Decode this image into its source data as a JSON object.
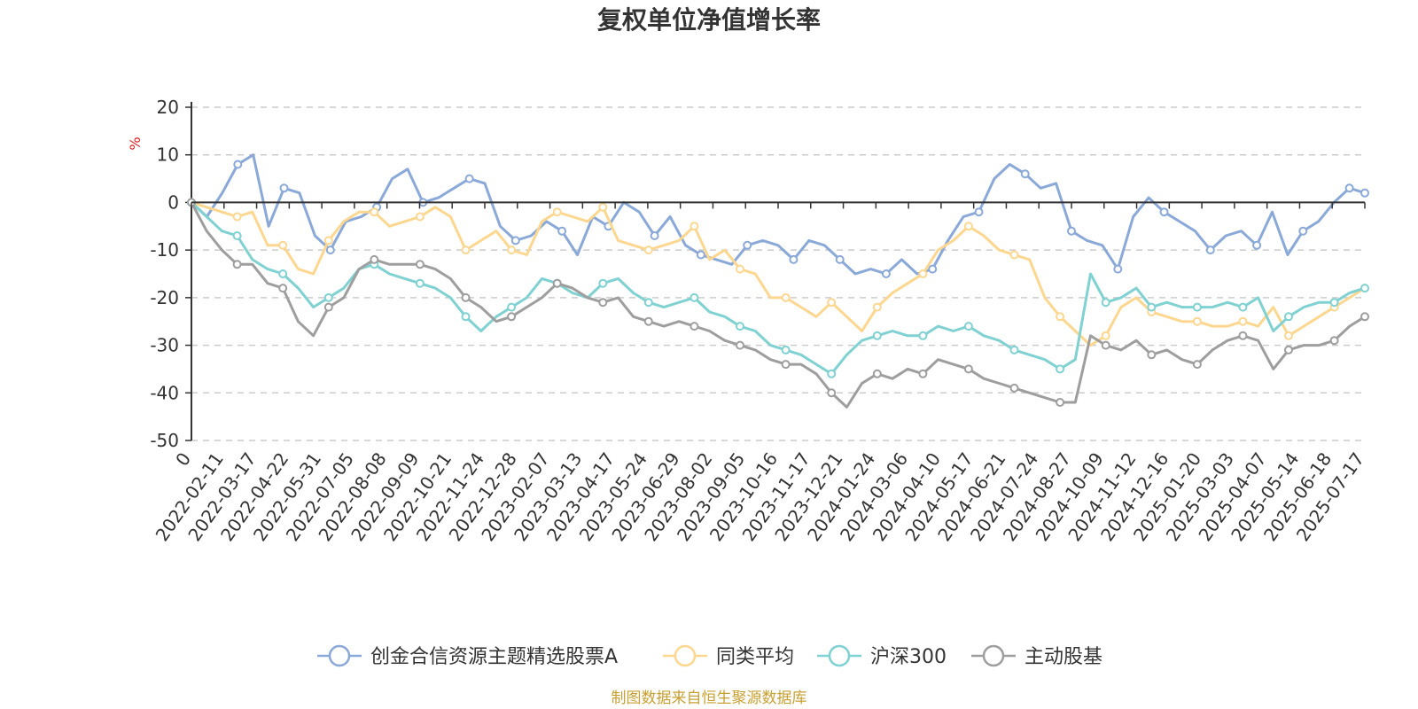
{
  "chart_data": {
    "type": "line",
    "title": "复权单位净值增长率",
    "ylabel": "%",
    "ylim": [
      -50,
      20
    ],
    "yticks": [
      20,
      10,
      0,
      -10,
      -20,
      -30,
      -40,
      -50
    ],
    "x_tick_labels": [
      "0",
      "2022-02-11",
      "2022-03-17",
      "2022-04-22",
      "2022-05-31",
      "2022-07-05",
      "2022-08-08",
      "2022-09-09",
      "2022-10-21",
      "2022-11-24",
      "2022-12-28",
      "2023-02-07",
      "2023-03-13",
      "2023-04-17",
      "2023-05-24",
      "2023-06-29",
      "2023-08-02",
      "2023-09-05",
      "2023-10-16",
      "2023-11-17",
      "2023-12-21",
      "2024-01-24",
      "2024-03-06",
      "2024-04-10",
      "2024-05-17",
      "2024-06-21",
      "2024-07-24",
      "2024-08-27",
      "2024-10-09",
      "2024-11-12",
      "2024-12-16",
      "2025-01-20",
      "2025-03-03",
      "2025-04-07",
      "2025-05-14",
      "2025-06-18",
      "2025-07-17"
    ],
    "grid": "horizontal-dashed",
    "legend_position": "bottom",
    "series": [
      {
        "name": "创金合信资源主题精选股票A",
        "color": "#8aa9d8",
        "values": [
          0,
          -3,
          2,
          8,
          10,
          -5,
          3,
          2,
          -7,
          -10,
          -4,
          -3,
          -1,
          5,
          7,
          0,
          1,
          3,
          5,
          4,
          -5,
          -8,
          -7,
          -4,
          -6,
          -11,
          -3,
          -5,
          0,
          -2,
          -7,
          -3,
          -9,
          -11,
          -12,
          -13,
          -9,
          -8,
          -9,
          -12,
          -8,
          -9,
          -12,
          -15,
          -14,
          -15,
          -12,
          -15,
          -14,
          -8,
          -3,
          -2,
          5,
          8,
          6,
          3,
          4,
          -6,
          -8,
          -9,
          -14,
          -3,
          1,
          -2,
          -4,
          -6,
          -10,
          -7,
          -6,
          -9,
          -2,
          -11,
          -6,
          -4,
          0,
          3,
          2
        ]
      },
      {
        "name": "同类平均",
        "color": "#fdd78f",
        "values": [
          0,
          -1,
          -2,
          -3,
          -2,
          -9,
          -9,
          -14,
          -15,
          -8,
          -4,
          -2,
          -2,
          -5,
          -4,
          -3,
          -1,
          -3,
          -10,
          -8,
          -6,
          -10,
          -11,
          -4,
          -2,
          -3,
          -4,
          -1,
          -8,
          -9,
          -10,
          -9,
          -8,
          -5,
          -12,
          -10,
          -14,
          -15,
          -20,
          -20,
          -22,
          -24,
          -21,
          -24,
          -27,
          -22,
          -19,
          -17,
          -15,
          -10,
          -8,
          -5,
          -7,
          -10,
          -11,
          -12,
          -20,
          -24,
          -27,
          -30,
          -28,
          -22,
          -20,
          -23,
          -24,
          -25,
          -25,
          -26,
          -26,
          -25,
          -26,
          -22,
          -28,
          -26,
          -24,
          -22,
          -20,
          -18
        ]
      },
      {
        "name": "沪深300",
        "color": "#7fd1d2",
        "values": [
          0,
          -3,
          -6,
          -7,
          -12,
          -14,
          -15,
          -18,
          -22,
          -20,
          -18,
          -14,
          -13,
          -15,
          -16,
          -17,
          -18,
          -20,
          -24,
          -27,
          -24,
          -22,
          -20,
          -16,
          -17,
          -19,
          -20,
          -17,
          -16,
          -19,
          -21,
          -22,
          -21,
          -20,
          -23,
          -24,
          -26,
          -27,
          -30,
          -31,
          -32,
          -34,
          -36,
          -32,
          -29,
          -28,
          -27,
          -28,
          -28,
          -26,
          -27,
          -26,
          -28,
          -29,
          -31,
          -32,
          -33,
          -35,
          -33,
          -15,
          -21,
          -20,
          -18,
          -22,
          -21,
          -22,
          -22,
          -22,
          -21,
          -22,
          -20,
          -27,
          -24,
          -22,
          -21,
          -21,
          -19,
          -18
        ]
      },
      {
        "name": "主动股基",
        "color": "#9e9e9e",
        "values": [
          0,
          -6,
          -10,
          -13,
          -13,
          -17,
          -18,
          -25,
          -28,
          -22,
          -20,
          -14,
          -12,
          -13,
          -13,
          -13,
          -14,
          -16,
          -20,
          -22,
          -25,
          -24,
          -22,
          -20,
          -17,
          -18,
          -20,
          -21,
          -20,
          -24,
          -25,
          -26,
          -25,
          -26,
          -27,
          -29,
          -30,
          -31,
          -33,
          -34,
          -34,
          -36,
          -40,
          -43,
          -38,
          -36,
          -37,
          -35,
          -36,
          -33,
          -34,
          -35,
          -37,
          -38,
          -39,
          -40,
          -41,
          -42,
          -42,
          -28,
          -30,
          -31,
          -29,
          -32,
          -31,
          -33,
          -34,
          -31,
          -29,
          -28,
          -29,
          -35,
          -31,
          -30,
          -30,
          -29,
          -26,
          -24
        ]
      }
    ]
  },
  "source_note": "制图数据来自恒生聚源数据库"
}
